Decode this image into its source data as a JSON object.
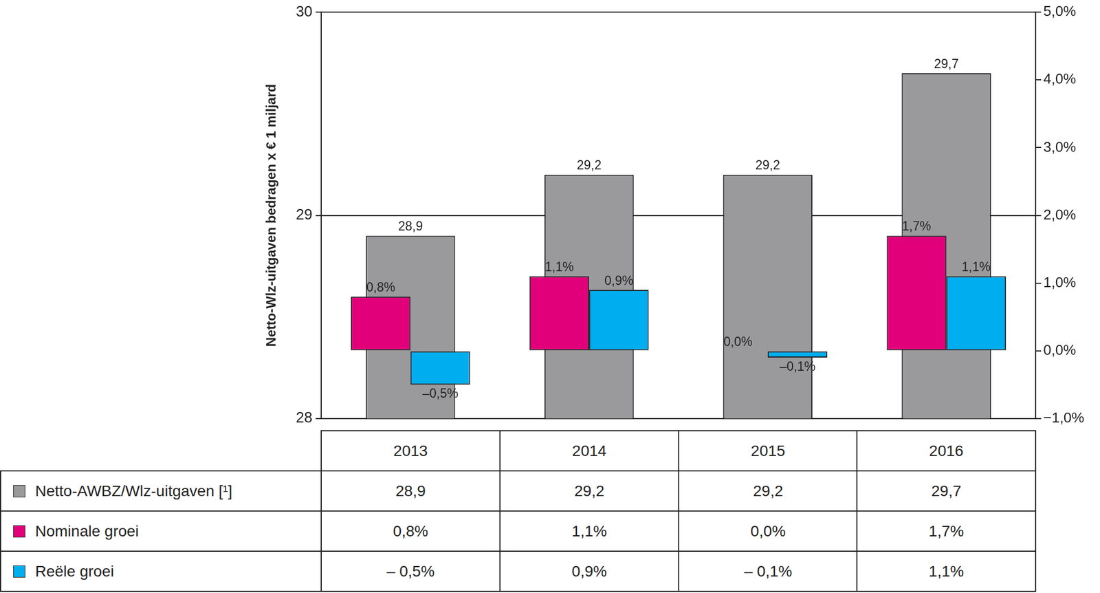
{
  "chart_data": {
    "type": "bar",
    "categories": [
      "2013",
      "2014",
      "2015",
      "2016"
    ],
    "y_label": "Netto-Wlz-uitgaven bedragen x € 1 miljard",
    "ylim": [
      28,
      30
    ],
    "yticks": [
      28,
      29,
      30
    ],
    "y2lim": [
      -1,
      5
    ],
    "y2ticks": [
      {
        "value": -1,
        "label": "−1,0%"
      },
      {
        "value": 0,
        "label": "0,0%"
      },
      {
        "value": 1,
        "label": "1,0%"
      },
      {
        "value": 2,
        "label": "2,0%"
      },
      {
        "value": 3,
        "label": "3,0%"
      },
      {
        "value": 4,
        "label": "4,0%"
      },
      {
        "value": 5,
        "label": "5,0%"
      }
    ],
    "grid": true,
    "data_labels": true,
    "series": [
      {
        "name": "Netto-AWBZ/Wlz-uitgaven [¹]",
        "color": "#9a9a9d",
        "values": [
          28.9,
          29.2,
          29.2,
          29.7
        ],
        "value_labels": [
          "28,9",
          "29,2",
          "29,2",
          "29,7"
        ]
      },
      {
        "name": "Nominale groei",
        "color": "#e2007a",
        "axis": "y2",
        "values": [
          0.8,
          1.1,
          0.0,
          1.7
        ],
        "value_labels": [
          "0,8%",
          "1,1%",
          "0,0%",
          "1,7%"
        ]
      },
      {
        "name": "Reële groei",
        "color": "#00aeef",
        "axis": "y2",
        "values": [
          -0.5,
          0.9,
          -0.1,
          1.1
        ],
        "value_labels": [
          "–0,5%",
          "0,9%",
          "–0,1%",
          "1,1%"
        ]
      }
    ]
  },
  "table": {
    "rows": [
      [
        "28,9",
        "29,2",
        "29,2",
        "29,7"
      ],
      [
        "0,8%",
        "1,1%",
        "0,0%",
        "1,7%"
      ],
      [
        "– 0,5%",
        "0,9%",
        "– 0,1%",
        "1,1%"
      ]
    ]
  }
}
